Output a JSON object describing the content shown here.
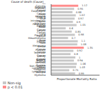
{
  "chart_data": {
    "type": "bar",
    "orientation": "horizontal",
    "stacked": true,
    "title": "Cause of death (Cause)",
    "x_label": "Proportionate Mortality Ratio",
    "categories": [
      "All Cancers (Cancer)",
      "Stomach Cancer",
      "Esophageal Cancer",
      "Colon Cancer",
      "Rectal & Anal Cancer",
      "Liver & Intrahepatic Bile Duct Cancer",
      "Pancreatic Cancer",
      "Nasal Cancer",
      "Larynx Cancer",
      "Lung Cancer",
      "Pleural & Mesothelioma Cancer",
      "Bone Cancer",
      "Skin Melanoma",
      "Breast Cancer",
      "Prostate Cancer",
      "Testicular Cancer",
      "Kidney Cancer",
      "Bladder Cancer",
      "Brain & Nervous System Cancer",
      "Non-Hodgkin Lymphoma",
      "Hodgkins Lymphoma",
      "Multiple Myeloma"
    ],
    "series": [
      {
        "name": "Non-sig",
        "color": "#c8c8c8",
        "values": [
          null,
          0.95,
          0.88,
          1.02,
          0.97,
          0.9,
          1.05,
          0.6,
          0.85,
          0.98,
          0.7,
          1.1,
          1.08,
          null,
          0.92,
          0.8,
          1.0,
          0.94,
          1.06,
          1.03,
          0.75,
          0.99
        ]
      },
      {
        "name": "p < 0.01",
        "color": "#ff8c8c",
        "values": [
          1.12,
          null,
          null,
          null,
          null,
          null,
          null,
          null,
          null,
          null,
          null,
          null,
          null,
          1.35,
          null,
          null,
          null,
          null,
          null,
          null,
          null,
          null
        ]
      }
    ],
    "xlim": [
      0,
      2
    ],
    "tick_labels": "y",
    "data_labels": true,
    "legend": "lower left"
  }
}
